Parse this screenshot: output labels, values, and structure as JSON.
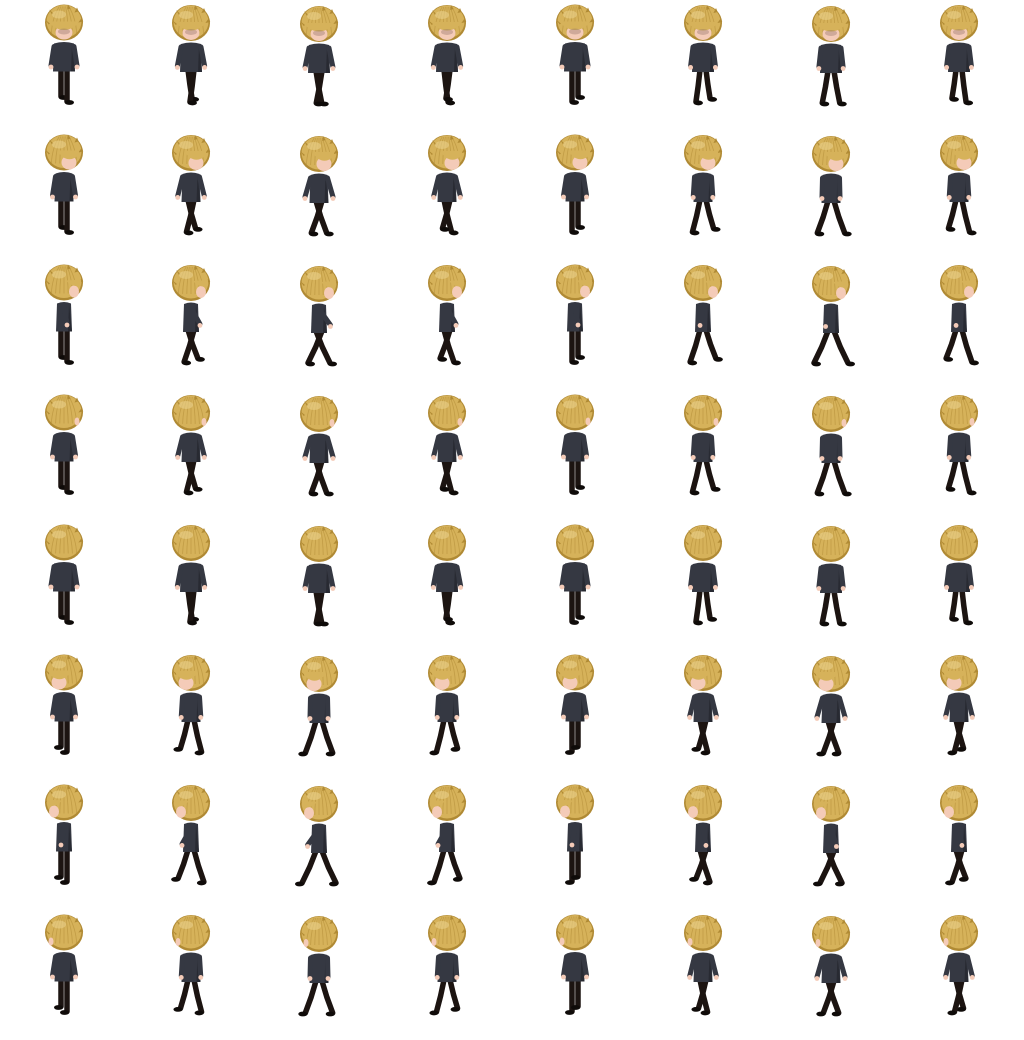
{
  "sprite_sheet": {
    "rows": [
      {
        "direction": "front",
        "frames": 8
      },
      {
        "direction": "front-right",
        "frames": 8
      },
      {
        "direction": "right",
        "frames": 8
      },
      {
        "direction": "back-right",
        "frames": 8
      },
      {
        "direction": "back",
        "frames": 8
      },
      {
        "direction": "front-left",
        "frames": 8
      },
      {
        "direction": "left",
        "frames": 8
      },
      {
        "direction": "back-left",
        "frames": 8
      }
    ],
    "colors": {
      "background": "#ffffff",
      "hair": "#d6b25a",
      "hair_shade": "#b08a34",
      "hair_highlight": "#ead08a",
      "skin": "#f4cbb8",
      "shirt": "#353842",
      "shirt_shade": "#23252c",
      "pants": "#1c1411",
      "shoes": "#0f0b09"
    }
  }
}
